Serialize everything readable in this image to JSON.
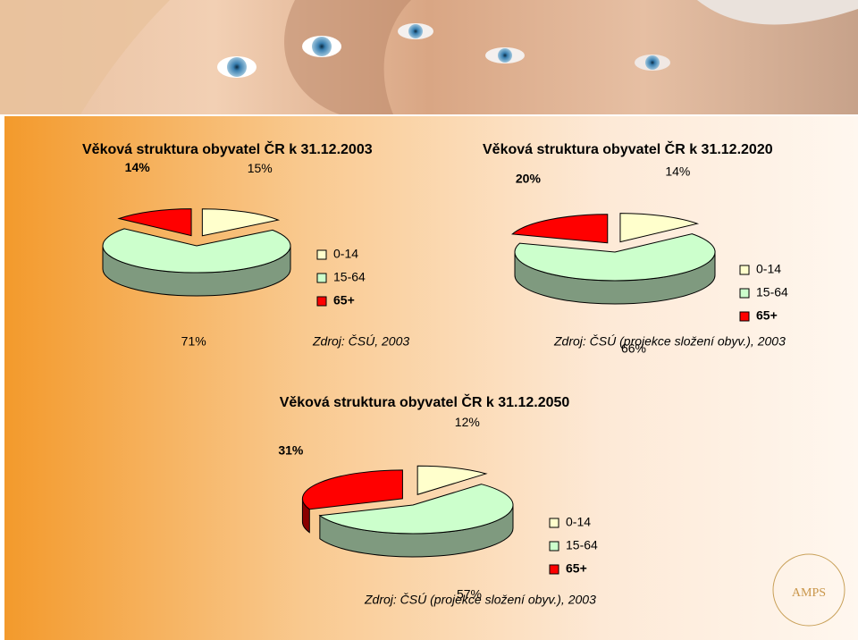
{
  "chart_data": [
    {
      "type": "pie",
      "title": "Věková struktura obyvatel ČR k 31.12.2003",
      "categories": [
        "0-14",
        "15-64",
        "65+"
      ],
      "values": [
        15,
        71,
        14
      ],
      "value_labels": [
        "15%",
        "71%",
        "14%"
      ],
      "colors": [
        "#ffffcc",
        "#ccffcc",
        "#ff0000"
      ],
      "source": "Zdroj: ČSÚ, 2003"
    },
    {
      "type": "pie",
      "title": "Věková struktura obyvatel ČR k 31.12.2020",
      "categories": [
        "0-14",
        "15-64",
        "65+"
      ],
      "values": [
        14,
        66,
        20
      ],
      "value_labels": [
        "14%",
        "66%",
        "20%"
      ],
      "colors": [
        "#ffffcc",
        "#ccffcc",
        "#ff0000"
      ],
      "source": "Zdroj: ČSÚ (projekce složení obyv.), 2003"
    },
    {
      "type": "pie",
      "title": "Věková struktura obyvatel ČR k 31.12.2050",
      "categories": [
        "0-14",
        "15-64",
        "65+"
      ],
      "values": [
        12,
        57,
        31
      ],
      "value_labels": [
        "12%",
        "57%",
        "31%"
      ],
      "colors": [
        "#ffffcc",
        "#ccffcc",
        "#ff0000"
      ],
      "source": "Zdroj: ČSÚ (projekce složení obyv.), 2003"
    }
  ],
  "logo": "AMPS"
}
